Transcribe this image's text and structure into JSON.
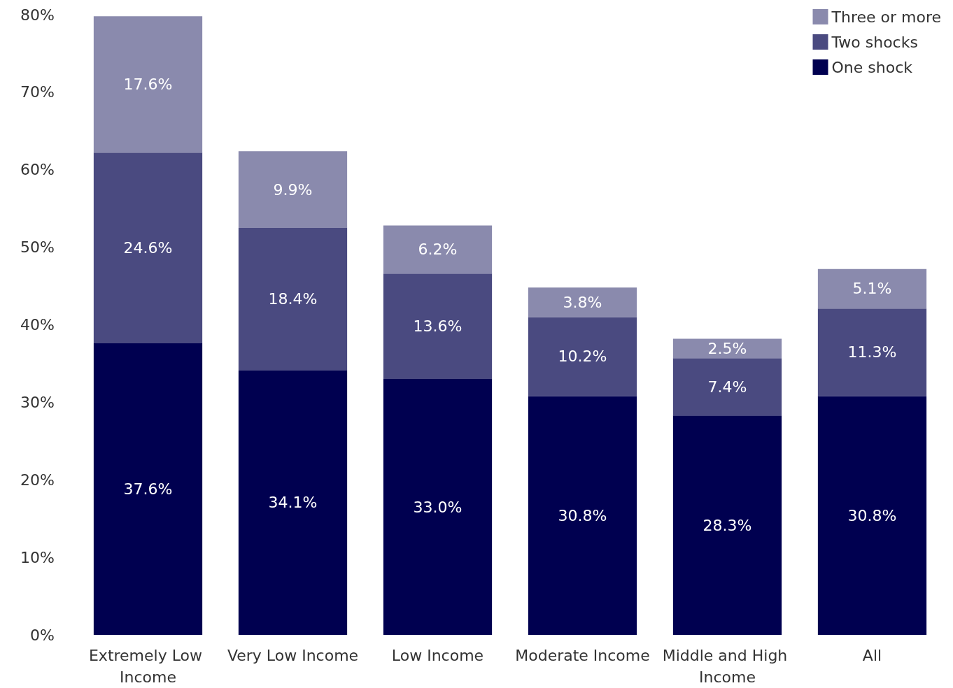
{
  "chart_data": {
    "type": "bar",
    "stacked": true,
    "legend": "top right",
    "grid": false,
    "categories": [
      "Extremely Low Income",
      "Very Low Income",
      "Low Income",
      "Moderate Income",
      "Middle and High Income",
      "All"
    ],
    "ylim": [
      0,
      80
    ],
    "yticks": [
      {
        "value": 0,
        "label": "0%"
      },
      {
        "value": 10,
        "label": "10%"
      },
      {
        "value": 20,
        "label": "20%"
      },
      {
        "value": 30,
        "label": "30%"
      },
      {
        "value": 40,
        "label": "40%"
      },
      {
        "value": 50,
        "label": "50%"
      },
      {
        "value": 60,
        "label": "60%"
      },
      {
        "value": 70,
        "label": "70%"
      },
      {
        "value": 80,
        "label": "80%"
      }
    ],
    "series": [
      {
        "name": "One shock",
        "color": "#000050",
        "values": [
          37.6,
          34.1,
          33.0,
          30.8,
          28.3,
          30.8
        ],
        "value_labels": [
          "37.6%",
          "34.1%",
          "33.0%",
          "30.8%",
          "28.3%",
          "30.8%"
        ]
      },
      {
        "name": "Two shocks",
        "color": "#4a4a80",
        "values": [
          24.6,
          18.4,
          13.6,
          10.2,
          7.4,
          11.3
        ],
        "value_labels": [
          "24.6%",
          "18.4%",
          "13.6%",
          "10.2%",
          "7.4%",
          "11.3%"
        ]
      },
      {
        "name": "Three or more",
        "color": "#8a8aad",
        "values": [
          17.6,
          9.9,
          6.2,
          3.8,
          2.5,
          5.1
        ],
        "value_labels": [
          "17.6%",
          "9.9%",
          "6.2%",
          "3.8%",
          "2.5%",
          "5.1%"
        ]
      }
    ]
  }
}
